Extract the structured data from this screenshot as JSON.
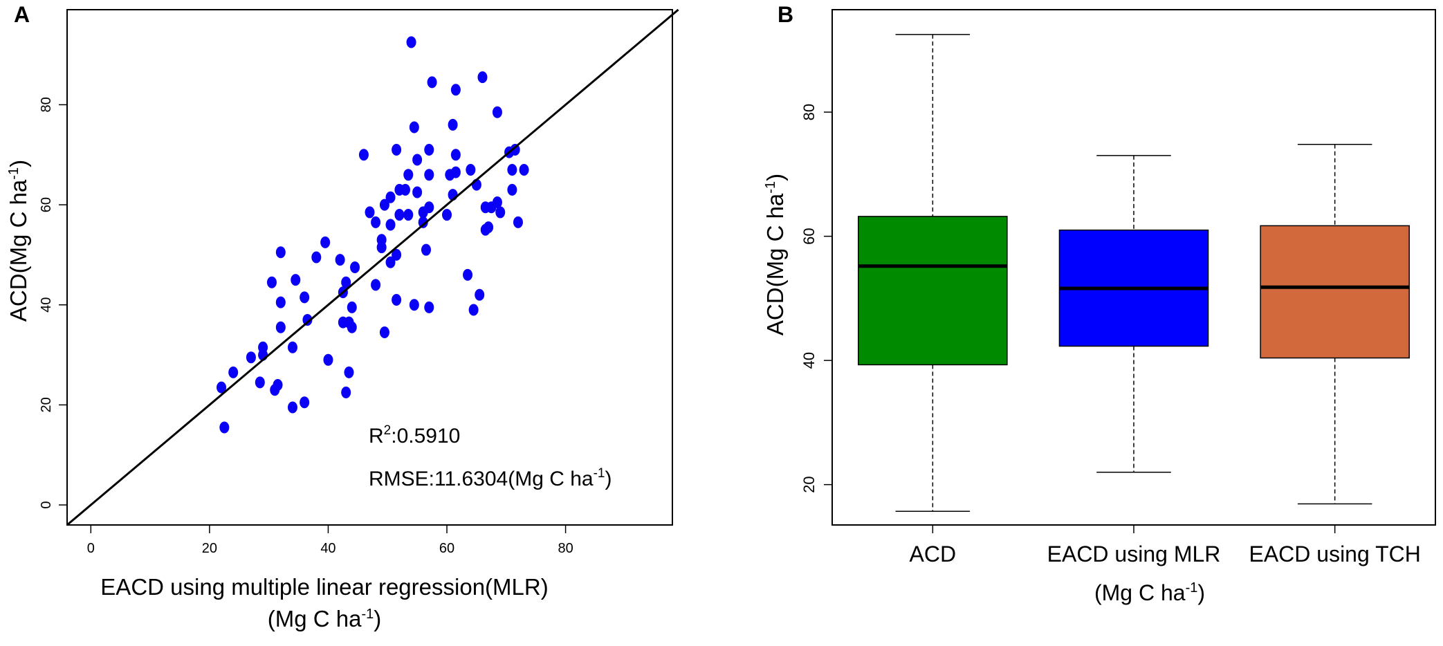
{
  "chart_data": [
    {
      "panel": "A",
      "type": "scatter",
      "xlabel": "EACD using multiple linear regression(MLR)",
      "xlabel_line2": "(Mg C ha",
      "ylabel": "ACD(Mg C ha",
      "unit_sup": "-1",
      "unit_close": ")",
      "xlim": [
        -4,
        98
      ],
      "ylim": [
        -4,
        99
      ],
      "x_ticks": [
        0,
        20,
        40,
        60,
        80
      ],
      "y_ticks": [
        0,
        20,
        40,
        60,
        80
      ],
      "reference_line": "1:1",
      "r2_prefix": "R",
      "r2_sup": "2",
      "r2_value": ":0.5910",
      "rmse_text": "RMSE:11.6304(Mg C ha",
      "point_color": "#0a00f5",
      "points": [
        [
          54,
          92.5
        ],
        [
          57.5,
          84.5
        ],
        [
          61.5,
          83
        ],
        [
          66,
          85.5
        ],
        [
          68.5,
          78.5
        ],
        [
          54.5,
          75.5
        ],
        [
          61,
          76
        ],
        [
          46,
          70
        ],
        [
          51.5,
          71
        ],
        [
          57,
          71
        ],
        [
          55,
          69
        ],
        [
          61.5,
          70
        ],
        [
          64,
          67
        ],
        [
          71.5,
          71
        ],
        [
          70.5,
          70.5
        ],
        [
          73,
          67
        ],
        [
          71,
          67
        ],
        [
          57,
          66
        ],
        [
          53.5,
          66
        ],
        [
          61.5,
          66.5
        ],
        [
          60.5,
          66
        ],
        [
          65,
          64
        ],
        [
          71,
          63
        ],
        [
          52,
          63
        ],
        [
          53,
          63
        ],
        [
          55,
          62.5
        ],
        [
          61,
          62
        ],
        [
          49.5,
          60
        ],
        [
          50.5,
          61.5
        ],
        [
          57,
          59.5
        ],
        [
          56,
          58.5
        ],
        [
          52,
          58
        ],
        [
          53.5,
          58
        ],
        [
          47,
          58.5
        ],
        [
          60,
          58
        ],
        [
          66.5,
          59.5
        ],
        [
          67.5,
          59.5
        ],
        [
          68.5,
          60.5
        ],
        [
          69,
          58.5
        ],
        [
          72,
          56.5
        ],
        [
          48,
          56.5
        ],
        [
          50.5,
          56
        ],
        [
          56,
          56.5
        ],
        [
          67,
          55.5
        ],
        [
          66.5,
          55
        ],
        [
          49,
          53
        ],
        [
          49,
          51.5
        ],
        [
          51.5,
          50
        ],
        [
          56.5,
          51
        ],
        [
          39.5,
          52.5
        ],
        [
          38,
          49.5
        ],
        [
          42,
          49
        ],
        [
          32,
          50.5
        ],
        [
          44.5,
          47.5
        ],
        [
          50.5,
          48.5
        ],
        [
          30.5,
          44.5
        ],
        [
          43,
          44.5
        ],
        [
          48,
          44
        ],
        [
          42.5,
          42.5
        ],
        [
          36,
          41.5
        ],
        [
          32,
          40.5
        ],
        [
          51.5,
          41
        ],
        [
          54.5,
          40
        ],
        [
          57,
          39.5
        ],
        [
          44,
          39.5
        ],
        [
          63.5,
          46
        ],
        [
          65.5,
          42
        ],
        [
          64.5,
          39
        ],
        [
          42.5,
          36.5
        ],
        [
          43.5,
          36.5
        ],
        [
          36.5,
          37
        ],
        [
          32,
          35.5
        ],
        [
          44,
          35.5
        ],
        [
          49.5,
          34.5
        ],
        [
          34,
          31.5
        ],
        [
          29,
          31.5
        ],
        [
          27,
          29.5
        ],
        [
          29,
          30
        ],
        [
          40,
          29
        ],
        [
          43.5,
          26.5
        ],
        [
          24,
          26.5
        ],
        [
          22,
          23.5
        ],
        [
          28.5,
          24.5
        ],
        [
          31.5,
          24
        ],
        [
          31,
          23
        ],
        [
          43,
          22.5
        ],
        [
          36,
          20.5
        ],
        [
          34,
          19.5
        ],
        [
          22.5,
          15.5
        ],
        [
          34.5,
          45
        ]
      ]
    },
    {
      "panel": "B",
      "type": "boxplot",
      "ylabel": "ACD(Mg C ha",
      "unit_sup": "-1",
      "unit_close": ")",
      "ylim": [
        13.5,
        96.5
      ],
      "y_ticks": [
        20,
        40,
        60,
        80
      ],
      "x_unit_line": "(Mg C ha",
      "categories": [
        "ACD",
        "EACD using MLR",
        "EACD using TCH"
      ],
      "boxes": [
        {
          "name": "ACD",
          "min": 15.7,
          "q1": 39.3,
          "median": 55.2,
          "q3": 63.2,
          "max": 92.5,
          "color": "#008a00"
        },
        {
          "name": "EACD using MLR",
          "min": 22.0,
          "q1": 42.3,
          "median": 51.6,
          "q3": 61.0,
          "max": 73.0,
          "color": "#0000ff"
        },
        {
          "name": "EACD using TCH",
          "min": 16.9,
          "q1": 40.4,
          "median": 51.8,
          "q3": 61.7,
          "max": 74.8,
          "color": "#d2693c"
        }
      ]
    }
  ]
}
